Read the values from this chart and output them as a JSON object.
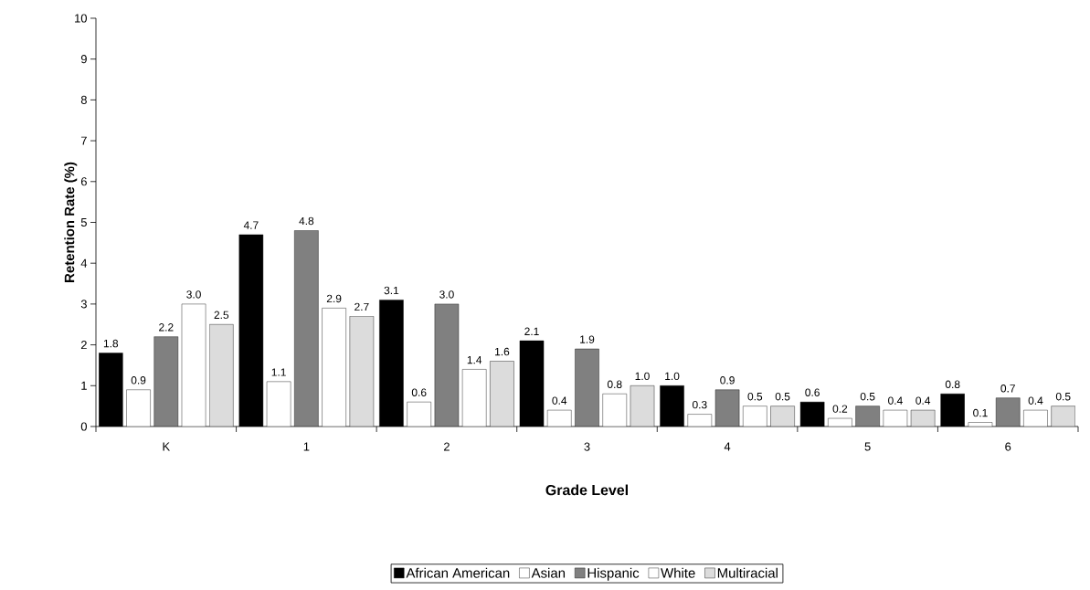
{
  "chart_data": {
    "type": "bar",
    "xlabel": "Grade Level",
    "ylabel": "Retention Rate (%)",
    "categories": [
      "K",
      "1",
      "2",
      "3",
      "4",
      "5",
      "6"
    ],
    "series": [
      {
        "name": "African American",
        "color": "#000000",
        "values": [
          1.8,
          4.7,
          3.1,
          2.1,
          1.0,
          0.6,
          0.8
        ],
        "value_labels": [
          "1.8",
          "4.7",
          "3.1",
          "2.1",
          "1.0",
          "0.6",
          "0.8"
        ]
      },
      {
        "name": "Asian",
        "color": "#ffffff",
        "values": [
          0.9,
          1.1,
          0.6,
          0.4,
          0.3,
          0.2,
          0.1
        ],
        "value_labels": [
          "0.9",
          "1.1",
          "0.6",
          "0.4",
          "0.3",
          "0.2",
          "0.1"
        ]
      },
      {
        "name": "Hispanic",
        "color": "#808080",
        "values": [
          2.2,
          4.8,
          3.0,
          1.9,
          0.9,
          0.5,
          0.7
        ],
        "value_labels": [
          "2.2",
          "4.8",
          "3.0",
          "1.9",
          "0.9",
          "0.5",
          "0.7"
        ]
      },
      {
        "name": "White",
        "color": "#ffffff",
        "values": [
          3.0,
          2.9,
          1.4,
          0.8,
          0.5,
          0.4,
          0.4
        ],
        "value_labels": [
          "3.0",
          "2.9",
          "1.4",
          "0.8",
          "0.5",
          "0.4",
          "0.4"
        ]
      },
      {
        "name": "Multiracial",
        "color": "#dcdcdc",
        "values": [
          2.5,
          2.7,
          1.6,
          1.0,
          0.5,
          0.4,
          0.5
        ],
        "value_labels": [
          "2.5",
          "2.7",
          "1.6",
          "1.0",
          "0.5",
          "0.4",
          "0.5"
        ]
      }
    ],
    "ylim": [
      0,
      10
    ],
    "yticks": [
      0,
      1,
      2,
      3,
      4,
      5,
      6,
      7,
      8,
      9,
      10
    ],
    "legend": "bottom",
    "grid": false
  }
}
